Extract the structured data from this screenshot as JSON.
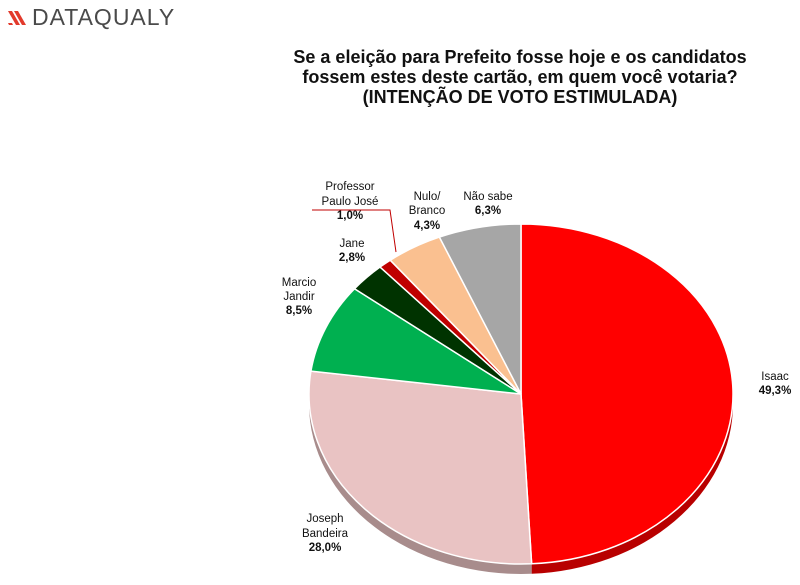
{
  "brand": {
    "name": "DATAQUALY"
  },
  "chart_data": {
    "type": "pie",
    "title": [
      "Se a eleição para Prefeito fosse hoje e os candidatos",
      "fossem estes deste cartão, em quem você votaria?",
      "(INTENÇÃO DE VOTO ESTIMULADA)"
    ],
    "slices": [
      {
        "label": "Isaac",
        "value": 49.3,
        "value_label": "49,3%",
        "color": "#ff0000"
      },
      {
        "label": "Joseph Bandeira",
        "value": 28.0,
        "value_label": "28,0%",
        "color": "#e9c3c3"
      },
      {
        "label": "Marcio Jandir",
        "value": 8.5,
        "value_label": "8,5%",
        "color": "#00b050"
      },
      {
        "label": "Jane",
        "value": 2.8,
        "value_label": "2,8%",
        "color": "#003300"
      },
      {
        "label": "Professor Paulo José",
        "value": 1.0,
        "value_label": "1,0%",
        "color": "#c00000"
      },
      {
        "label": "Nulo/ Branco",
        "value": 4.3,
        "value_label": "4,3%",
        "color": "#fac090"
      },
      {
        "label": "Não sabe",
        "value": 6.3,
        "value_label": "6,3%",
        "color": "#a6a6a6"
      }
    ]
  }
}
